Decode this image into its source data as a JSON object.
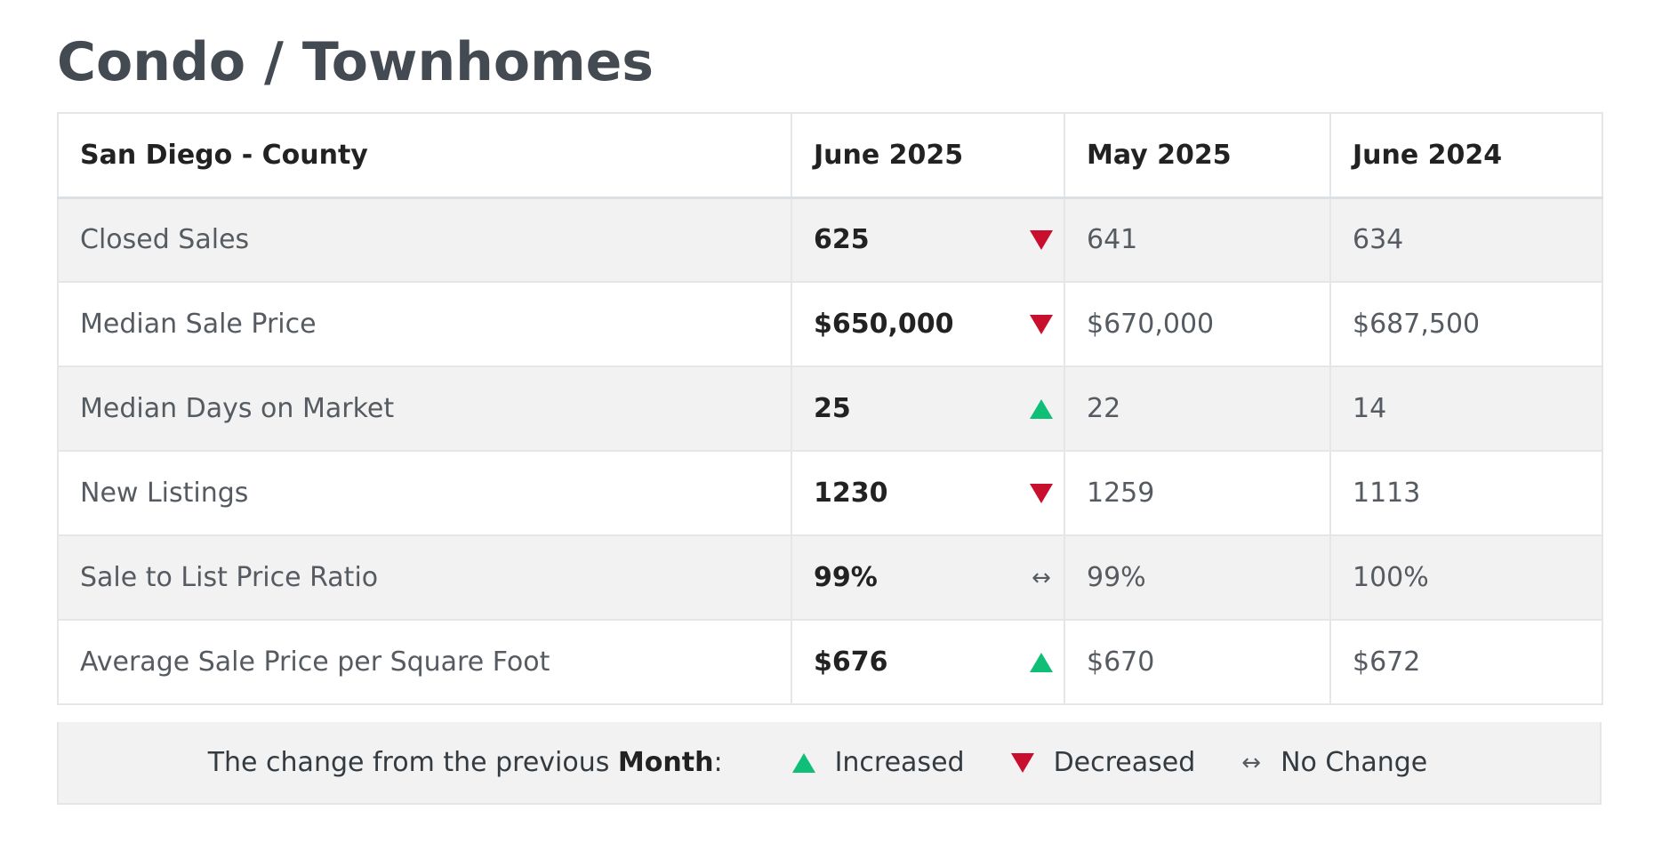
{
  "page": {
    "title": "Condo / Townhomes"
  },
  "table": {
    "headers": {
      "region": "San Diego - County",
      "current": "June 2025",
      "previous": "May 2025",
      "year_ago": "June 2024"
    },
    "rows": [
      {
        "label": "Closed Sales",
        "current": "625",
        "trend": "decreased",
        "previous": "641",
        "year_ago": "634"
      },
      {
        "label": "Median Sale Price",
        "current": "$650,000",
        "trend": "decreased",
        "previous": "$670,000",
        "year_ago": "$687,500"
      },
      {
        "label": "Median Days on Market",
        "current": "25",
        "trend": "increased",
        "previous": "22",
        "year_ago": "14"
      },
      {
        "label": "New Listings",
        "current": "1230",
        "trend": "decreased",
        "previous": "1259",
        "year_ago": "1113"
      },
      {
        "label": "Sale to List Price Ratio",
        "current": "99%",
        "trend": "no-change",
        "previous": "99%",
        "year_ago": "100%"
      },
      {
        "label": "Average Sale Price per Square Foot",
        "current": "$676",
        "trend": "increased",
        "previous": "$670",
        "year_ago": "$672"
      }
    ]
  },
  "legend": {
    "prefix": "The change from the previous ",
    "period": "Month",
    "suffix": ":",
    "increased": "Increased",
    "decreased": "Decreased",
    "no_change": "No Change",
    "no_change_symbol": "↔"
  },
  "colors": {
    "increase": "#0fbf78",
    "decrease": "#c8102e",
    "stripe": "#f2f2f2",
    "title": "#434a52"
  }
}
